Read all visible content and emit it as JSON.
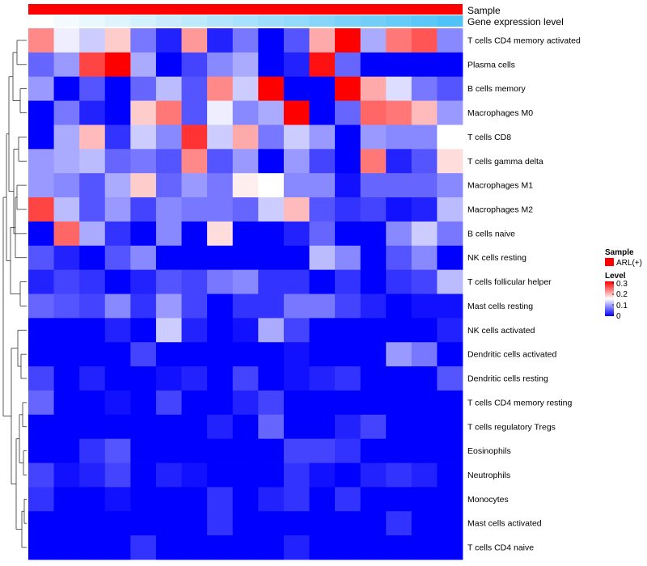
{
  "chart_data": {
    "type": "heatmap",
    "row_labels": [
      "T cells CD4 memory activated",
      "Plasma cells",
      "B cells memory",
      "Macrophages M0",
      "T cells CD8",
      "T cells gamma delta",
      "Macrophages M1",
      "Macrophages M2",
      "B cells naive",
      "NK cells resting",
      "T cells follicular helper",
      "Mast cells resting",
      "NK cells activated",
      "Dendritic cells activated",
      "Dendritic cells resting",
      "T cells CD4 memory resting",
      "T cells regulatory  Tregs",
      "Eosinophils",
      "Neutrophils",
      "Monocytes",
      "Mast cells activated",
      "T cells CD4 naive"
    ],
    "n_columns": 17,
    "values": [
      [
        0.22,
        0.14,
        0.12,
        0.18,
        0.07,
        0.02,
        0.21,
        0.02,
        0.07,
        0.0,
        0.05,
        0.2,
        0.3,
        0.1,
        0.23,
        0.25,
        0.08
      ],
      [
        0.06,
        0.09,
        0.26,
        0.3,
        0.1,
        0.0,
        0.04,
        0.08,
        0.1,
        0.0,
        0.02,
        0.29,
        0.06,
        0.0,
        0.0,
        0.0,
        0.0
      ],
      [
        0.09,
        0.0,
        0.05,
        0.0,
        0.06,
        0.11,
        0.05,
        0.22,
        0.12,
        0.3,
        0.0,
        0.0,
        0.3,
        0.2,
        0.13,
        0.07,
        0.05
      ],
      [
        0.0,
        0.07,
        0.02,
        0.0,
        0.18,
        0.23,
        0.05,
        0.14,
        0.08,
        0.1,
        0.3,
        0.0,
        0.06,
        0.24,
        0.23,
        0.19,
        0.09
      ],
      [
        0.0,
        0.1,
        0.19,
        0.03,
        0.12,
        0.08,
        0.27,
        0.12,
        0.2,
        0.07,
        0.12,
        0.09,
        0.0,
        0.09,
        0.08,
        0.08,
        0.15
      ],
      [
        0.09,
        0.1,
        0.11,
        0.06,
        0.07,
        0.05,
        0.22,
        0.05,
        0.09,
        0.0,
        0.09,
        0.04,
        0.0,
        0.23,
        0.02,
        0.05,
        0.17
      ],
      [
        0.09,
        0.08,
        0.05,
        0.1,
        0.18,
        0.06,
        0.09,
        0.07,
        0.16,
        0.15,
        0.08,
        0.08,
        0.01,
        0.06,
        0.06,
        0.06,
        0.08
      ],
      [
        0.26,
        0.11,
        0.05,
        0.09,
        0.04,
        0.08,
        0.07,
        0.07,
        0.06,
        0.12,
        0.19,
        0.05,
        0.03,
        0.04,
        0.01,
        0.02,
        0.11
      ],
      [
        0.0,
        0.24,
        0.1,
        0.03,
        0.0,
        0.08,
        0.0,
        0.17,
        0.0,
        0.0,
        0.02,
        0.06,
        0.0,
        0.0,
        0.08,
        0.12,
        0.07
      ],
      [
        0.05,
        0.02,
        0.0,
        0.05,
        0.08,
        0.0,
        0.0,
        0.0,
        0.0,
        0.0,
        0.0,
        0.11,
        0.08,
        0.0,
        0.05,
        0.08,
        0.0
      ],
      [
        0.02,
        0.04,
        0.03,
        0.0,
        0.02,
        0.05,
        0.04,
        0.07,
        0.08,
        0.03,
        0.03,
        0.0,
        0.03,
        0.0,
        0.03,
        0.04,
        0.11
      ],
      [
        0.06,
        0.05,
        0.04,
        0.08,
        0.03,
        0.09,
        0.04,
        0.0,
        0.03,
        0.03,
        0.07,
        0.07,
        0.04,
        0.02,
        0.0,
        0.01,
        0.01
      ],
      [
        0.0,
        0.0,
        0.0,
        0.02,
        0.0,
        0.12,
        0.02,
        0.0,
        0.01,
        0.1,
        0.04,
        0.0,
        0.0,
        0.0,
        0.0,
        0.0,
        0.02
      ],
      [
        0.0,
        0.0,
        0.0,
        0.0,
        0.04,
        0.0,
        0.0,
        0.0,
        0.0,
        0.0,
        0.01,
        0.0,
        0.0,
        0.0,
        0.09,
        0.07,
        0.0
      ],
      [
        0.04,
        0.0,
        0.02,
        0.0,
        0.0,
        0.01,
        0.02,
        0.0,
        0.04,
        0.0,
        0.01,
        0.02,
        0.03,
        0.0,
        0.0,
        0.0,
        0.05
      ],
      [
        0.06,
        0.0,
        0.0,
        0.01,
        0.0,
        0.04,
        0.0,
        0.0,
        0.02,
        0.04,
        0.0,
        0.0,
        0.0,
        0.0,
        0.0,
        0.0,
        0.0
      ],
      [
        0.0,
        0.0,
        0.0,
        0.0,
        0.0,
        0.0,
        0.0,
        0.02,
        0.0,
        0.06,
        0.0,
        0.0,
        0.02,
        0.04,
        0.0,
        0.0,
        0.0
      ],
      [
        0.0,
        0.0,
        0.03,
        0.05,
        0.0,
        0.0,
        0.0,
        0.0,
        0.0,
        0.0,
        0.04,
        0.04,
        0.03,
        0.0,
        0.0,
        0.0,
        0.0
      ],
      [
        0.04,
        0.01,
        0.02,
        0.04,
        0.0,
        0.02,
        0.01,
        0.0,
        0.0,
        0.0,
        0.03,
        0.01,
        0.0,
        0.02,
        0.03,
        0.02,
        0.0
      ],
      [
        0.03,
        0.0,
        0.0,
        0.01,
        0.0,
        0.0,
        0.0,
        0.03,
        0.0,
        0.02,
        0.03,
        0.0,
        0.03,
        0.0,
        0.0,
        0.0,
        0.0
      ],
      [
        0.0,
        0.0,
        0.0,
        0.0,
        0.0,
        0.0,
        0.0,
        0.03,
        0.0,
        0.0,
        0.0,
        0.0,
        0.0,
        0.0,
        0.03,
        0.0,
        0.0
      ],
      [
        0.0,
        0.0,
        0.0,
        0.0,
        0.03,
        0.0,
        0.0,
        0.0,
        0.0,
        0.0,
        0.02,
        0.0,
        0.0,
        0.0,
        0.0,
        0.0,
        0.0
      ]
    ],
    "scale": {
      "min": 0,
      "mid": 0.15,
      "max": 0.3,
      "low_color": "#0000ff",
      "mid_color": "#ffffff",
      "high_color": "#ff0000"
    },
    "annotations": {
      "sample": {
        "label": "Sample",
        "color": "#ff0000"
      },
      "gene_expression": {
        "label": "Gene expression level",
        "low_color": "#ffffff",
        "high_color": "#4fc3f7"
      }
    },
    "legend": {
      "placement": "right",
      "sample_title": "Sample",
      "sample_entry": "ARL(+)",
      "sample_color": "#ff0000",
      "level_title": "Level",
      "level_ticks": [
        "0.3",
        "0.2",
        "0.1",
        "0"
      ]
    },
    "row_dendrogram": true,
    "column_dendrogram": false
  }
}
